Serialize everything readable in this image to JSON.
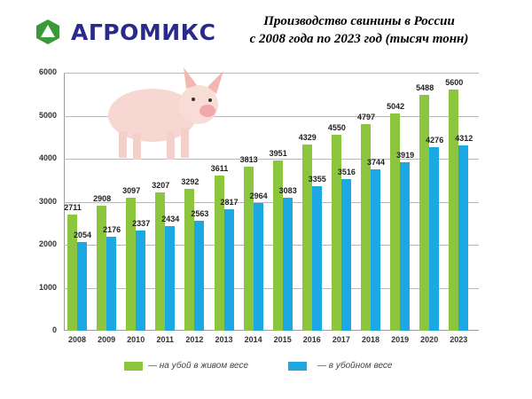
{
  "brand": {
    "name": "АГРОМИКС",
    "logo_color": "#3a9a3a",
    "text_color": "#2a2a8a"
  },
  "title_lines": [
    "Производство свинины в России",
    "с 2008 года по 2023 год (тысяч тонн)"
  ],
  "chart_data": {
    "type": "bar",
    "title": "Производство свинины в России с 2008 года по 2023 год (тысяч тонн)",
    "xlabel": "",
    "ylabel": "",
    "ylim": [
      0,
      6000
    ],
    "yticks": [
      0,
      1000,
      2000,
      3000,
      4000,
      5000,
      6000
    ],
    "grid": true,
    "legend_position": "bottom",
    "categories": [
      "2008",
      "2009",
      "2010",
      "2011",
      "2012",
      "2013",
      "2014",
      "2015",
      "2016",
      "2017",
      "2018",
      "2019",
      "2020",
      "2023"
    ],
    "series": [
      {
        "name": "— на убой в живом весе",
        "color": "#8cc63f",
        "values": [
          2711,
          2908,
          3097,
          3207,
          3292,
          3611,
          3813,
          3951,
          4329,
          4550,
          4797,
          5042,
          5488,
          5600
        ]
      },
      {
        "name": "— в убойном весе",
        "color": "#1ca8e3",
        "values": [
          2054,
          2176,
          2337,
          2434,
          2563,
          2817,
          2964,
          3083,
          3355,
          3516,
          3744,
          3919,
          4276,
          4312
        ]
      }
    ]
  },
  "decoration": {
    "image": "piglet-illustration"
  }
}
